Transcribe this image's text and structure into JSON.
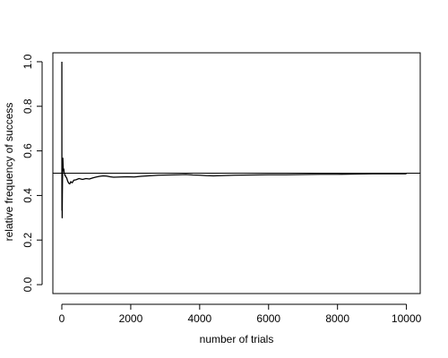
{
  "chart_data": {
    "type": "line",
    "title": "",
    "xlabel": "number of trials",
    "ylabel": "relative frequency of success",
    "xlim": [
      -260,
      10400
    ],
    "ylim": [
      -0.04,
      1.04
    ],
    "xticks": [
      0,
      2000,
      4000,
      6000,
      8000,
      10000
    ],
    "yticks": [
      0.0,
      0.2,
      0.4,
      0.6,
      0.8,
      1.0
    ],
    "xtick_labels": [
      "0",
      "2000",
      "4000",
      "6000",
      "8000",
      "10000"
    ],
    "ytick_labels": [
      "0.0",
      "0.2",
      "0.4",
      "0.6",
      "0.8",
      "1.0"
    ],
    "reference_line": {
      "y": 0.5
    },
    "grid": false,
    "series": [
      {
        "x": [
          1,
          2,
          3,
          4,
          5,
          6,
          8,
          10,
          12,
          15,
          18,
          22,
          26,
          30,
          35,
          40,
          45,
          50,
          55,
          60,
          70,
          80,
          90,
          100,
          120,
          140,
          160,
          180,
          200,
          230,
          260,
          300,
          350,
          400,
          450,
          500,
          600,
          700,
          800,
          900,
          1000,
          1100,
          1200,
          1300,
          1400,
          1500,
          1700,
          1900,
          2100,
          2300,
          2500,
          2800,
          3100,
          3400,
          3600,
          3800,
          4000,
          4200,
          4400,
          4600,
          4800,
          5000,
          5500,
          6000,
          6500,
          7000,
          7500,
          8000,
          8500,
          9000,
          9500,
          10000
        ],
        "values": [
          1.0,
          0.5,
          0.333,
          0.5,
          0.4,
          0.5,
          0.375,
          0.3,
          0.333,
          0.4,
          0.444,
          0.5,
          0.538,
          0.567,
          0.543,
          0.525,
          0.511,
          0.52,
          0.51,
          0.517,
          0.5,
          0.5,
          0.489,
          0.49,
          0.483,
          0.479,
          0.469,
          0.461,
          0.455,
          0.452,
          0.462,
          0.457,
          0.469,
          0.47,
          0.473,
          0.476,
          0.472,
          0.476,
          0.474,
          0.479,
          0.483,
          0.486,
          0.488,
          0.487,
          0.484,
          0.482,
          0.483,
          0.484,
          0.483,
          0.486,
          0.488,
          0.491,
          0.492,
          0.493,
          0.494,
          0.492,
          0.491,
          0.489,
          0.488,
          0.489,
          0.49,
          0.491,
          0.492,
          0.493,
          0.493,
          0.494,
          0.495,
          0.495,
          0.496,
          0.497,
          0.497,
          0.497
        ]
      }
    ]
  }
}
